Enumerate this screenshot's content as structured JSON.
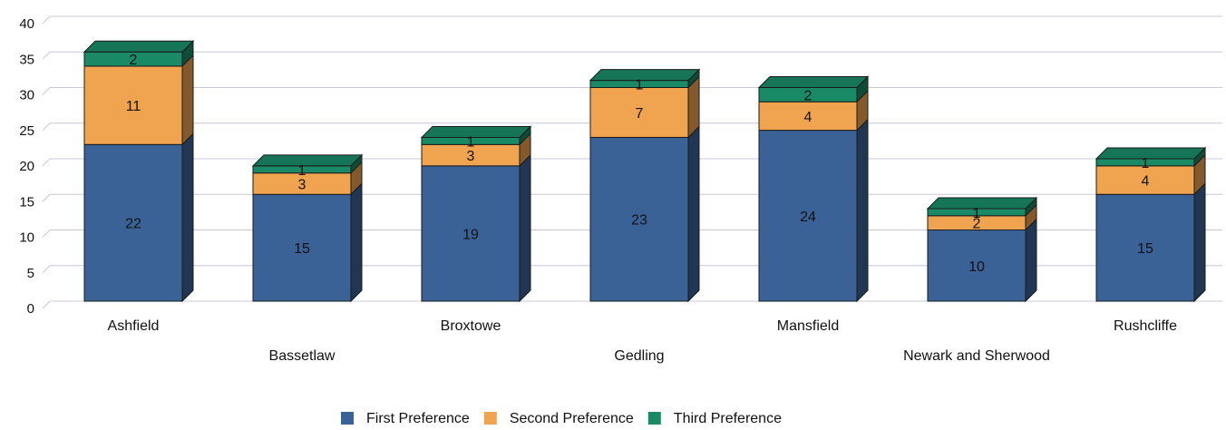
{
  "chart_data": {
    "type": "bar",
    "stacked": true,
    "three_d": true,
    "categories": [
      "Ashfield",
      "Bassetlaw",
      "Broxtowe",
      "Gedling",
      "Mansfield",
      "Newark and Sherwood",
      "Rushcliffe"
    ],
    "series": [
      {
        "name": "First Preference",
        "color": "#3a6296",
        "values": [
          22,
          15,
          19,
          23,
          24,
          10,
          15
        ]
      },
      {
        "name": "Second Preference",
        "color": "#f0a450",
        "values": [
          11,
          3,
          3,
          7,
          4,
          2,
          4
        ]
      },
      {
        "name": "Third Preference",
        "color": "#1a8a66",
        "values": [
          2,
          1,
          1,
          1,
          2,
          1,
          1
        ]
      }
    ],
    "ylim": [
      0,
      40
    ],
    "yticks": [
      0,
      5,
      10,
      15,
      20,
      25,
      30,
      35,
      40
    ],
    "grid": true,
    "legend": "bottom",
    "title": "",
    "xlabel": "",
    "ylabel": ""
  }
}
